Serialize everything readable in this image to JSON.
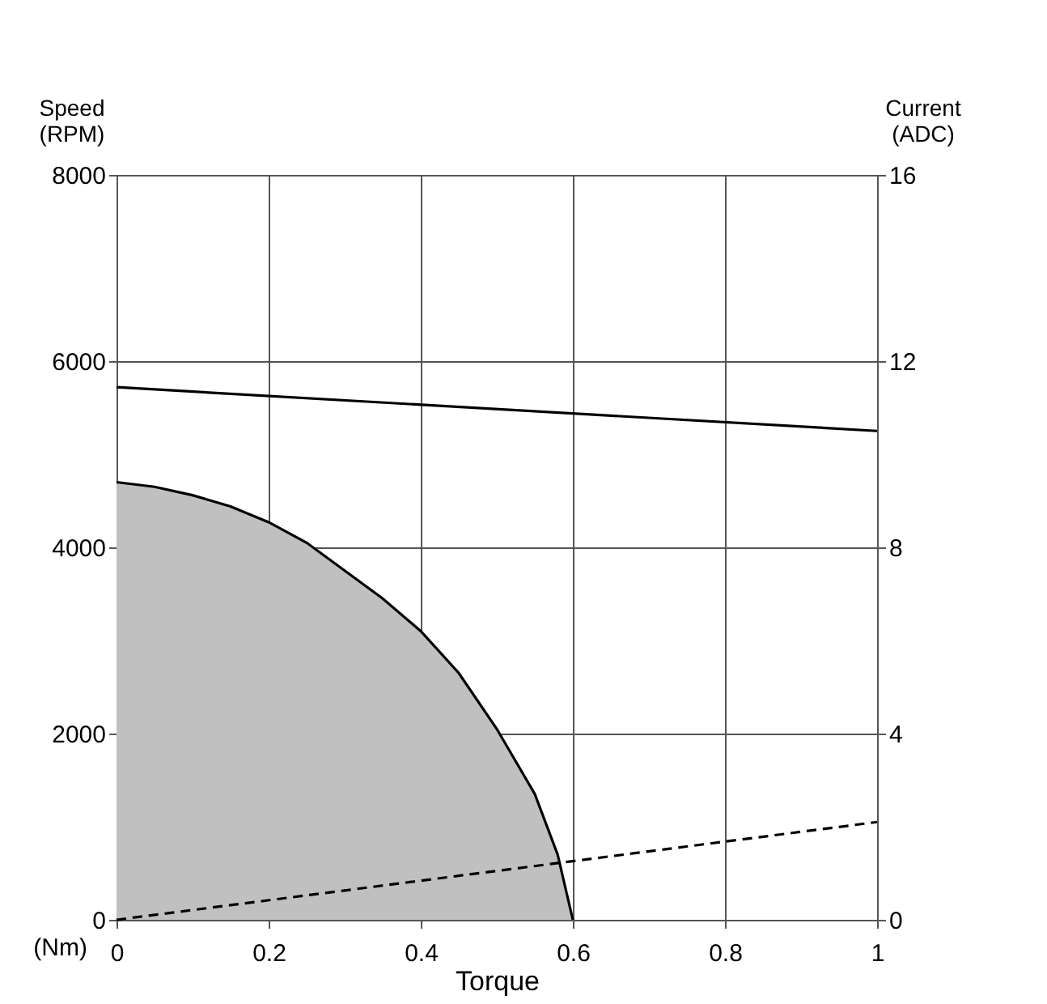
{
  "chart_data": {
    "type": "line",
    "xlabel": "Torque",
    "ylabel": "Speed (RPM)",
    "y2label": "Current (ADC)",
    "annotations": [
      "(Nm)"
    ],
    "xlim": [
      0,
      1
    ],
    "xticks": [
      0,
      0.2,
      0.4,
      0.6,
      0.8,
      1
    ],
    "ylim": [
      0,
      8000
    ],
    "yticks": [
      0,
      2000,
      4000,
      6000,
      8000
    ],
    "y2lim": [
      0,
      16
    ],
    "y2ticks": [
      0,
      4,
      8,
      12,
      16
    ],
    "grid": true,
    "series": [
      {
        "type": "area",
        "color": "#c0c0c0",
        "x": [
          0,
          0.05,
          0.1,
          0.15,
          0.2,
          0.25,
          0.3,
          0.35,
          0.4,
          0.45,
          0.5,
          0.55,
          0.58,
          0.6
        ],
        "values": [
          4700,
          4650,
          4560,
          4440,
          4270,
          4050,
          3750,
          3450,
          3100,
          2650,
          2050,
          1350,
          700,
          0
        ]
      },
      {
        "color": "#000000",
        "line_style": "solid",
        "x": [
          0,
          1
        ],
        "values": [
          5720,
          5250
        ]
      },
      {
        "color": "#000000",
        "line_style": "dashed",
        "axis": "y2",
        "x": [
          0,
          1
        ],
        "values": [
          0,
          2.1
        ]
      }
    ]
  }
}
